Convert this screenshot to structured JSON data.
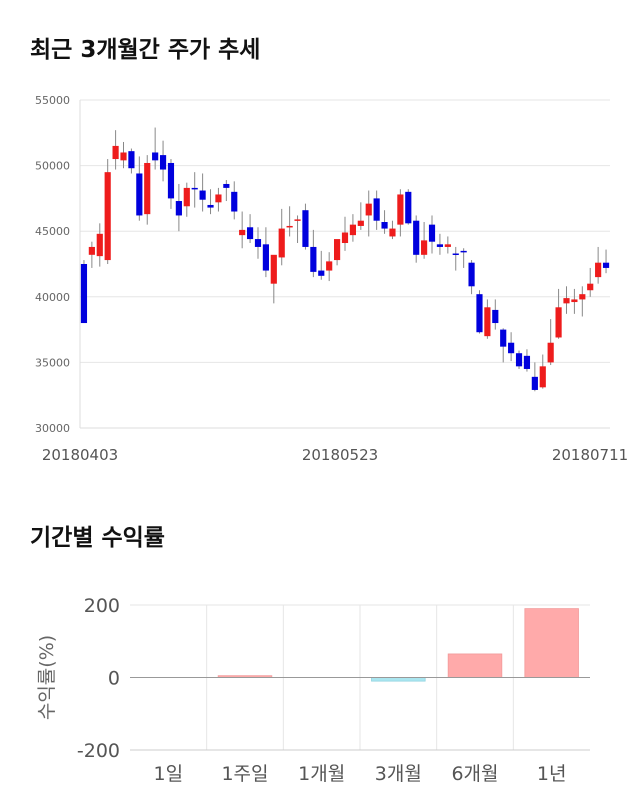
{
  "sections": {
    "price_title": "최근 3개월간 주가 추세",
    "returns_title": "기간별 수익률"
  },
  "chart_data": [
    {
      "type": "candlestick",
      "title": "최근 3개월간 주가 추세",
      "ylim": [
        30000,
        55000
      ],
      "yticks": [
        "55000",
        "50000",
        "45000",
        "40000",
        "35000",
        "30000"
      ],
      "xtick_labels": [
        "20180403",
        "20180523",
        "20180711"
      ],
      "grid": true,
      "up_color": "#ee1c1c",
      "down_color": "#0000dd",
      "candles": [
        [
          42500,
          42800,
          38000,
          38000
        ],
        [
          43200,
          44200,
          42200,
          43800
        ],
        [
          43100,
          45600,
          42300,
          44800
        ],
        [
          42800,
          50500,
          42500,
          49500
        ],
        [
          50500,
          52700,
          49700,
          51500
        ],
        [
          50400,
          51800,
          49800,
          51000
        ],
        [
          51100,
          51300,
          49400,
          49800
        ],
        [
          49400,
          50700,
          45800,
          46200
        ],
        [
          46300,
          50800,
          45500,
          50200
        ],
        [
          51000,
          52900,
          49700,
          50400
        ],
        [
          50800,
          51900,
          48800,
          49700
        ],
        [
          50200,
          50500,
          46700,
          47500
        ],
        [
          47300,
          48600,
          45000,
          46200
        ],
        [
          46900,
          48700,
          46100,
          48300
        ],
        [
          48300,
          49500,
          46800,
          48200
        ],
        [
          48100,
          49400,
          46500,
          47400
        ],
        [
          47000,
          48200,
          46300,
          46800
        ],
        [
          47200,
          48300,
          46500,
          47800
        ],
        [
          48600,
          48900,
          47300,
          48300
        ],
        [
          48000,
          48800,
          45900,
          46500
        ],
        [
          44700,
          46500,
          43700,
          45100
        ],
        [
          45300,
          46300,
          44100,
          44400
        ],
        [
          44400,
          45300,
          42900,
          43800
        ],
        [
          44000,
          45300,
          41500,
          42000
        ],
        [
          41000,
          43000,
          39500,
          43200
        ],
        [
          43000,
          46700,
          42400,
          45200
        ],
        [
          45400,
          46900,
          44600,
          45400
        ],
        [
          45800,
          46200,
          44100,
          45900
        ],
        [
          46600,
          47100,
          43600,
          43800
        ],
        [
          43800,
          45100,
          41500,
          41900
        ],
        [
          42000,
          43500,
          41300,
          41600
        ],
        [
          42000,
          43400,
          41200,
          42700
        ],
        [
          42800,
          44300,
          42400,
          44400
        ],
        [
          44100,
          46100,
          43500,
          44900
        ],
        [
          44700,
          46300,
          44200,
          45500
        ],
        [
          45400,
          47200,
          45100,
          45800
        ],
        [
          46200,
          48100,
          44600,
          47100
        ],
        [
          47500,
          48100,
          45100,
          45800
        ],
        [
          45700,
          46600,
          44800,
          45200
        ],
        [
          44600,
          45800,
          44400,
          45200
        ],
        [
          45500,
          48200,
          44600,
          47800
        ],
        [
          48000,
          48200,
          45500,
          45600
        ],
        [
          45800,
          46200,
          42600,
          43200
        ],
        [
          43200,
          45700,
          42900,
          44300
        ],
        [
          45500,
          46200,
          43300,
          44200
        ],
        [
          44000,
          44800,
          43200,
          43800
        ],
        [
          43800,
          44600,
          43300,
          44000
        ],
        [
          43300,
          43800,
          42000,
          43200
        ],
        [
          43500,
          43700,
          42200,
          43400
        ],
        [
          42600,
          42800,
          40200,
          40800
        ],
        [
          40200,
          40500,
          37200,
          37300
        ],
        [
          37000,
          39800,
          36800,
          39200
        ],
        [
          39000,
          39800,
          37500,
          38000
        ],
        [
          37500,
          37600,
          35000,
          36200
        ],
        [
          36500,
          37300,
          35100,
          35700
        ],
        [
          35700,
          35900,
          34500,
          34700
        ],
        [
          35500,
          36000,
          34300,
          34500
        ],
        [
          33900,
          35000,
          32800,
          32900
        ],
        [
          33100,
          35600,
          33000,
          34700
        ],
        [
          35000,
          38300,
          34800,
          36500
        ],
        [
          36900,
          40600,
          36800,
          39200
        ],
        [
          39500,
          40800,
          38700,
          39900
        ],
        [
          39600,
          40600,
          38700,
          39800
        ],
        [
          39800,
          40800,
          38500,
          40200
        ],
        [
          40500,
          42200,
          40000,
          41000
        ],
        [
          41500,
          43800,
          41000,
          42600
        ],
        [
          42600,
          43600,
          41800,
          42200
        ]
      ]
    },
    {
      "type": "bar",
      "categories": [
        "1일",
        "1주일",
        "1개월",
        "3개월",
        "6개월",
        "1년"
      ],
      "values": [
        0,
        5,
        0,
        -10,
        65,
        190
      ],
      "ylabel": "수익률(%)",
      "ylim": [
        -200,
        200
      ],
      "yticks": [
        "200",
        "0",
        "-200"
      ],
      "positive_color": "#ffaaaa",
      "negative_color": "#aae6f0",
      "grid": true
    }
  ]
}
